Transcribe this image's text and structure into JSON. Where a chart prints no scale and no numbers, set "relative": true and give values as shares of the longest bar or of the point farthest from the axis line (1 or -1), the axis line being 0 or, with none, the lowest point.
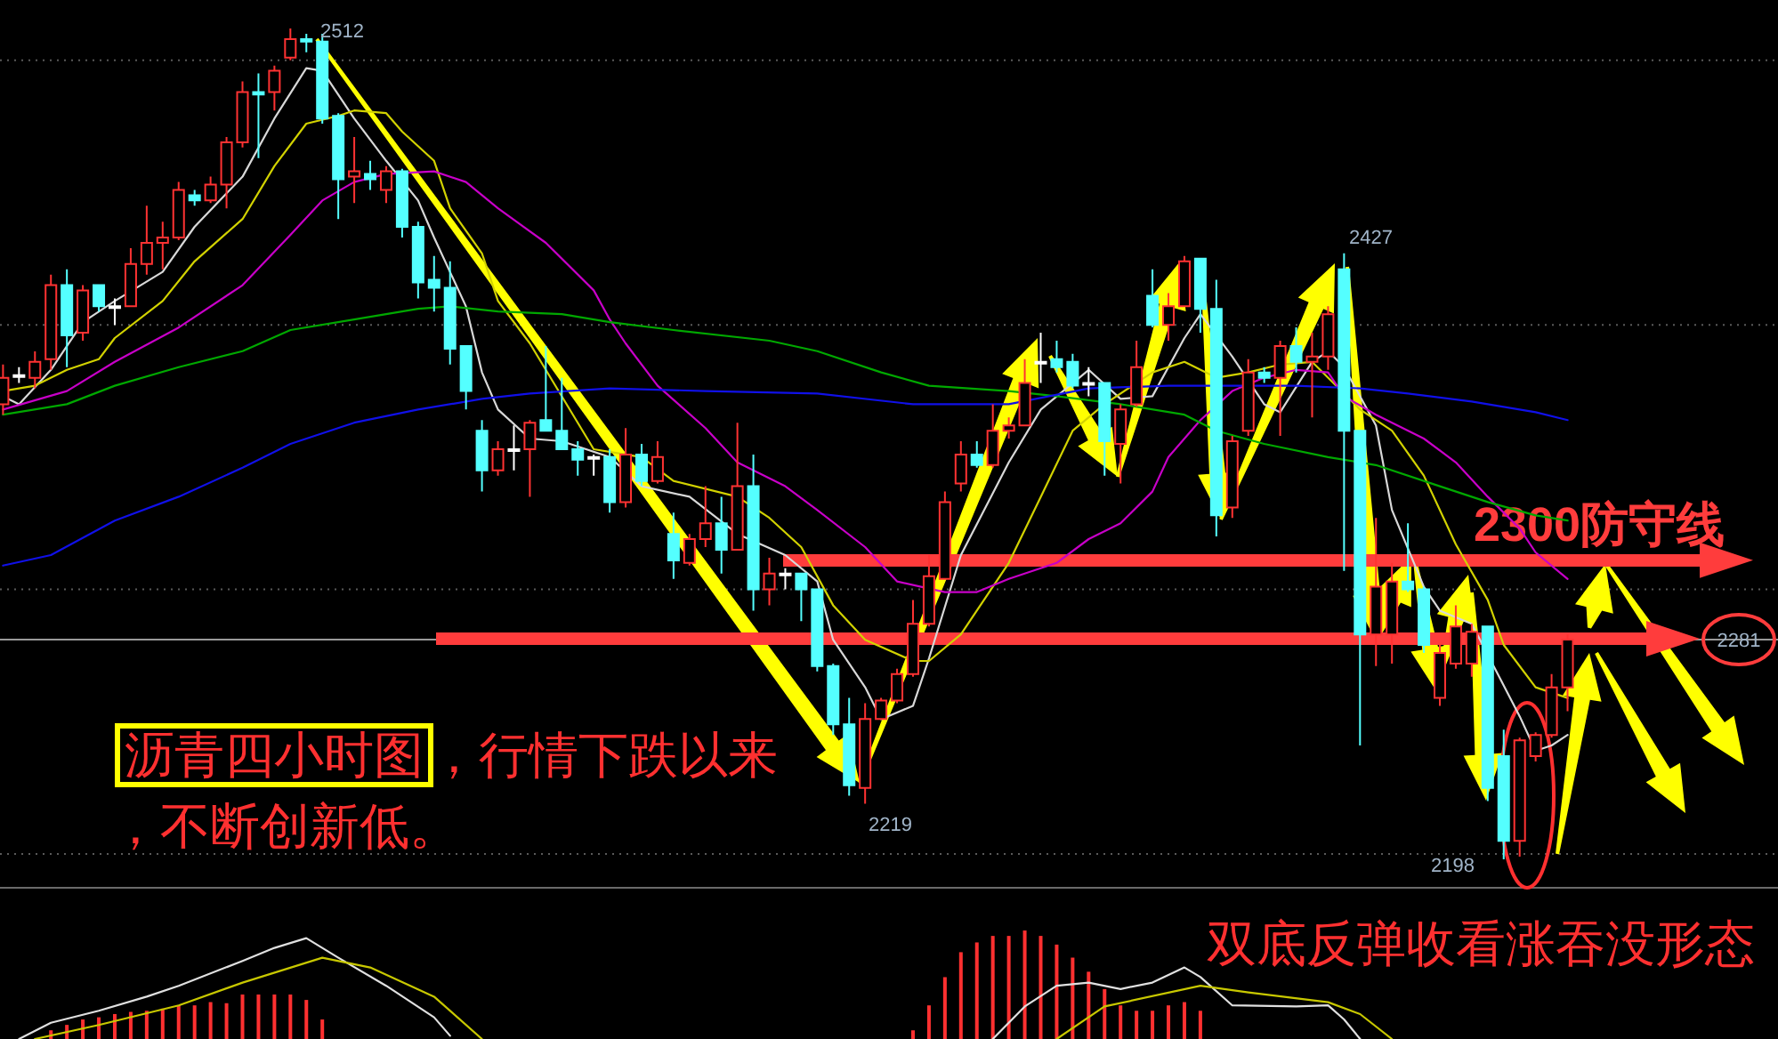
{
  "chart_data": [
    {
      "type": "candlestick",
      "categories": [
        null,
        null,
        null,
        null,
        null,
        null,
        null,
        null,
        null,
        null,
        null,
        null,
        null,
        null,
        null,
        null,
        null,
        null,
        null,
        null,
        null,
        null,
        null,
        null,
        null,
        null,
        null,
        null,
        null,
        null,
        null,
        null,
        null,
        null,
        null,
        null,
        null,
        null,
        null,
        null,
        null,
        null,
        null,
        null,
        null,
        null,
        null,
        null,
        null,
        null,
        null,
        null,
        null,
        null,
        null,
        null,
        null,
        null,
        null,
        null,
        null,
        null,
        null,
        null,
        null,
        null,
        null,
        null,
        null,
        null,
        null,
        null,
        null,
        null,
        null,
        null,
        null,
        null,
        null,
        null,
        null,
        null,
        null,
        null,
        null,
        null,
        null,
        null,
        null,
        null,
        null,
        null,
        null,
        null,
        null,
        null,
        null,
        null,
        null
      ],
      "ohlc": [
        [
          2370,
          2385,
          2366,
          2380
        ],
        [
          2381,
          2384,
          2378,
          2381
        ],
        [
          2380,
          2390,
          2376,
          2386
        ],
        [
          2387,
          2419,
          2383,
          2415
        ],
        [
          2415,
          2421,
          2384,
          2396
        ],
        [
          2397,
          2415,
          2394,
          2413
        ],
        [
          2415,
          2415,
          2405,
          2407
        ],
        [
          2407,
          2410,
          2400,
          2407
        ],
        [
          2407,
          2429,
          2407,
          2423
        ],
        [
          2423,
          2445,
          2419,
          2431
        ],
        [
          2431,
          2439,
          2421,
          2433
        ],
        [
          2433,
          2454,
          2432,
          2451
        ],
        [
          2449,
          2451,
          2445,
          2447
        ],
        [
          2447,
          2456,
          2446,
          2453
        ],
        [
          2453,
          2471,
          2444,
          2469
        ],
        [
          2469,
          2492,
          2467,
          2488
        ],
        [
          2488,
          2495,
          2463,
          2487
        ],
        [
          2488,
          2498,
          2481,
          2496
        ],
        [
          2501,
          2512,
          2500,
          2508
        ],
        [
          2508,
          2510,
          2503,
          2507
        ],
        [
          2507,
          2510,
          2476,
          2478
        ],
        [
          2479,
          2480,
          2440,
          2455
        ],
        [
          2456,
          2471,
          2446,
          2458
        ],
        [
          2457,
          2462,
          2451,
          2455
        ],
        [
          2451,
          2460,
          2446,
          2458
        ],
        [
          2458,
          2459,
          2433,
          2437
        ],
        [
          2437,
          2439,
          2410,
          2416
        ],
        [
          2417,
          2426,
          2405,
          2414
        ],
        [
          2414,
          2424,
          2385,
          2391
        ],
        [
          2392,
          2392,
          2368,
          2375
        ],
        [
          2360,
          2364,
          2337,
          2345
        ],
        [
          2345,
          2356,
          2343,
          2353
        ],
        [
          2353,
          2362,
          2345,
          2353
        ],
        [
          2353,
          2364,
          2335,
          2363
        ],
        [
          2364,
          2392,
          2360,
          2360
        ],
        [
          2360,
          2380,
          2353,
          2353
        ],
        [
          2353,
          2356,
          2343,
          2349
        ],
        [
          2350,
          2351,
          2343,
          2350
        ],
        [
          2350,
          2353,
          2329,
          2333
        ],
        [
          2333,
          2361,
          2331,
          2351
        ],
        [
          2351,
          2355,
          2339,
          2341
        ],
        [
          2341,
          2356,
          2340,
          2350
        ],
        [
          2321,
          2329,
          2304,
          2311
        ],
        [
          2310,
          2321,
          2309,
          2319
        ],
        [
          2319,
          2339,
          2316,
          2325
        ],
        [
          2325,
          2335,
          2306,
          2315
        ],
        [
          2315,
          2363,
          2315,
          2339
        ],
        [
          2339,
          2351,
          2292,
          2300
        ],
        [
          2300,
          2312,
          2294,
          2306
        ],
        [
          2306,
          2308,
          2300,
          2306
        ],
        [
          2306,
          2306,
          2288,
          2300
        ],
        [
          2300,
          2300,
          2269,
          2271
        ],
        [
          2271,
          2272,
          2245,
          2249
        ],
        [
          2249,
          2259,
          2222,
          2226
        ],
        [
          2225,
          2257,
          2219,
          2251
        ],
        [
          2251,
          2259,
          2251,
          2258
        ],
        [
          2258,
          2270,
          2257,
          2268
        ],
        [
          2268,
          2296,
          2267,
          2287
        ],
        [
          2287,
          2313,
          2286,
          2305
        ],
        [
          2304,
          2337,
          2304,
          2333
        ],
        [
          2340,
          2356,
          2337,
          2351
        ],
        [
          2351,
          2356,
          2346,
          2347
        ],
        [
          2347,
          2370,
          2346,
          2360
        ],
        [
          2360,
          2365,
          2357,
          2362
        ],
        [
          2362,
          2387,
          2362,
          2378
        ],
        [
          2386,
          2397,
          2378,
          2386
        ],
        [
          2387,
          2394,
          2382,
          2384
        ],
        [
          2386,
          2389,
          2376,
          2377
        ],
        [
          2378,
          2384,
          2373,
          2378
        ],
        [
          2378,
          2378,
          2343,
          2356
        ],
        [
          2355,
          2370,
          2340,
          2368
        ],
        [
          2370,
          2394,
          2369,
          2384
        ],
        [
          2411,
          2421,
          2399,
          2400
        ],
        [
          2400,
          2412,
          2394,
          2407
        ],
        [
          2407,
          2426,
          2407,
          2424
        ],
        [
          2425,
          2425,
          2397,
          2406
        ],
        [
          2406,
          2417,
          2320,
          2328
        ],
        [
          2331,
          2358,
          2327,
          2356
        ],
        [
          2360,
          2387,
          2358,
          2382
        ],
        [
          2382,
          2384,
          2378,
          2380
        ],
        [
          2380,
          2394,
          2358,
          2392
        ],
        [
          2392,
          2399,
          2382,
          2386
        ],
        [
          2386,
          2397,
          2365,
          2388
        ],
        [
          2388,
          2407,
          2383,
          2404
        ],
        [
          2421,
          2427,
          2307,
          2360
        ],
        [
          2360,
          2360,
          2241,
          2283
        ],
        [
          2283,
          2327,
          2271,
          2301
        ],
        [
          2283,
          2310,
          2272,
          2303
        ],
        [
          2303,
          2325,
          2299,
          2300
        ],
        [
          2300,
          2301,
          2276,
          2279
        ],
        [
          2259,
          2279,
          2256,
          2276
        ],
        [
          2272,
          2294,
          2270,
          2286
        ],
        [
          2272,
          2287,
          2267,
          2284
        ],
        [
          2286,
          2286,
          2220,
          2225
        ],
        [
          2237,
          2247,
          2198,
          2205
        ],
        [
          2205,
          2244,
          2199,
          2243
        ],
        [
          2237,
          2246,
          2235,
          2245
        ],
        [
          2245,
          2268,
          2244,
          2263
        ],
        [
          2263,
          2283,
          2254,
          2281
        ]
      ],
      "colors": [
        "#ff3232",
        "#ffffff",
        "#ff3232",
        "#ff3232",
        "#54ffff",
        "#ff3232",
        "#54ffff",
        "#ffffff",
        "#ff3232",
        "#ff3232",
        "#ff3232",
        "#ff3232",
        "#54ffff",
        "#ff3232",
        "#ff3232",
        "#ff3232",
        "#54ffff",
        "#ff3232",
        "#ff3232",
        "#54ffff",
        "#54ffff",
        "#54ffff",
        "#ff3232",
        "#54ffff",
        "#ff3232",
        "#54ffff",
        "#54ffff",
        "#54ffff",
        "#54ffff",
        "#54ffff",
        "#54ffff",
        "#ff3232",
        "#ffffff",
        "#ff3232",
        "#54ffff",
        "#54ffff",
        "#54ffff",
        "#ffffff",
        "#54ffff",
        "#ff3232",
        "#54ffff",
        "#ff3232",
        "#54ffff",
        "#ff3232",
        "#ff3232",
        "#54ffff",
        "#ff3232",
        "#54ffff",
        "#ff3232",
        "#ffffff",
        "#54ffff",
        "#54ffff",
        "#54ffff",
        "#54ffff",
        "#ff3232",
        "#ff3232",
        "#ff3232",
        "#ff3232",
        "#ff3232",
        "#ff3232",
        "#ff3232",
        "#54ffff",
        "#ff3232",
        "#ff3232",
        "#ff3232",
        "#ffffff",
        "#54ffff",
        "#54ffff",
        "#ffffff",
        "#54ffff",
        "#ff3232",
        "#ff3232",
        "#54ffff",
        "#ff3232",
        "#ff3232",
        "#54ffff",
        "#54ffff",
        "#ff3232",
        "#ff3232",
        "#54ffff",
        "#ff3232",
        "#54ffff",
        "#ff3232",
        "#ff3232",
        "#54ffff",
        "#54ffff",
        "#ff3232",
        "#ff3232",
        "#54ffff",
        "#54ffff",
        "#ff3232",
        "#ff3232",
        "#ff3232",
        "#54ffff",
        "#54ffff",
        "#ff3232",
        "#ff3232",
        "#ff3232",
        "#ff3232"
      ],
      "yticks": [
        {
          "value": 2200,
          "label": null
        },
        {
          "value": 2300,
          "label": null
        },
        {
          "value": 2400,
          "label": null
        },
        {
          "value": 2500,
          "label": null
        }
      ],
      "grid": "y",
      "series": [
        {
          "type": "line",
          "color": "#d8d8d8",
          "values": [
            2373,
            2370,
            null,
            2383,
            null,
            2401,
            null,
            2409,
            null,
            null,
            2420,
            null,
            2437,
            null,
            null,
            2456,
            null,
            2478,
            null,
            2497,
            2496,
            null,
            2478,
            null,
            2462,
            null,
            2447,
            2433,
            null,
            2407,
            2382,
            2368,
            null,
            2357,
            null,
            2356,
            null,
            null,
            2350,
            null,
            2339,
            null,
            null,
            2335,
            null,
            null,
            2321,
            null,
            null,
            2313,
            null,
            2303,
            2281,
            null,
            2263,
            2251,
            null,
            2256,
            2274,
            null,
            2313,
            null,
            null,
            2348,
            null,
            2368,
            null,
            null,
            2383,
            null,
            2372,
            null,
            2373,
            null,
            2395,
            2404,
            null,
            2388,
            null,
            2370,
            2367,
            null,
            2386,
            2390,
            2384,
            null,
            2362,
            2330,
            null,
            2301,
            2292,
            null,
            2287,
            null,
            null,
            2252,
            2239,
            2241,
            2245
          ]
        },
        {
          "type": "line",
          "color": "#d2d200",
          "values": [
            2375,
            null,
            2377,
            null,
            2383,
            null,
            2387,
            2395,
            null,
            null,
            2409,
            null,
            2424,
            null,
            null,
            2440,
            null,
            2460,
            null,
            2476,
            null,
            2479,
            2481,
            null,
            2480,
            2473,
            null,
            2462,
            2444,
            null,
            2427,
            2409,
            null,
            2393,
            null,
            null,
            null,
            2353,
            null,
            null,
            2350,
            null,
            2341,
            null,
            null,
            null,
            2335,
            null,
            2327,
            null,
            2316,
            null,
            2294,
            null,
            2281,
            null,
            null,
            2273,
            2273,
            null,
            2283,
            null,
            null,
            2310,
            null,
            2335,
            null,
            2360,
            null,
            2370,
            null,
            null,
            2382,
            null,
            2386,
            null,
            2380,
            null,
            2382,
            null,
            2385,
            null,
            2386,
            null,
            null,
            2368,
            null,
            2360,
            null,
            2343,
            null,
            2317,
            null,
            2296,
            2279,
            null,
            2263,
            null,
            2259
          ]
        },
        {
          "type": "line",
          "color": "#c800c8",
          "values": [
            2368,
            null,
            null,
            null,
            2375,
            null,
            null,
            2386,
            null,
            null,
            null,
            2399,
            null,
            null,
            null,
            2415,
            null,
            null,
            2434,
            null,
            2447,
            null,
            2454,
            null,
            2457,
            null,
            null,
            2458,
            null,
            2454,
            null,
            2444,
            null,
            null,
            2431,
            null,
            null,
            2413,
            2402,
            2393,
            null,
            2377,
            null,
            null,
            2361,
            null,
            2348,
            null,
            null,
            2339,
            null,
            2330,
            null,
            null,
            2316,
            null,
            2303,
            null,
            null,
            2299,
            null,
            2299,
            null,
            2304,
            null,
            null,
            2310,
            null,
            2319,
            null,
            2325,
            null,
            2337,
            2350,
            null,
            2364,
            null,
            2375,
            null,
            2380,
            null,
            2383,
            null,
            2382,
            2373,
            null,
            2366,
            null,
            null,
            2357,
            null,
            2348,
            null,
            2335,
            null,
            2323,
            2314,
            null,
            2304
          ]
        },
        {
          "type": "line",
          "color": "#00a800",
          "values": [
            2366,
            null,
            null,
            null,
            2370,
            null,
            null,
            2377,
            null,
            null,
            null,
            2384,
            null,
            null,
            null,
            2390,
            null,
            null,
            2398,
            null,
            null,
            null,
            2402,
            null,
            null,
            null,
            2406,
            null,
            2407,
            null,
            null,
            2405,
            null,
            null,
            null,
            2404,
            null,
            null,
            2401,
            null,
            null,
            null,
            2398,
            null,
            null,
            null,
            null,
            null,
            2394,
            null,
            null,
            2390,
            null,
            null,
            null,
            2382,
            null,
            null,
            2377,
            null,
            null,
            null,
            null,
            2375,
            null,
            null,
            2373,
            null,
            null,
            null,
            2370,
            null,
            null,
            null,
            2366,
            null,
            2360,
            null,
            null,
            2355,
            null,
            null,
            null,
            2350,
            null,
            null,
            2347,
            null,
            null,
            null,
            2339,
            null,
            null,
            2333,
            null,
            null,
            2328,
            null,
            2326
          ]
        },
        {
          "type": "line",
          "color": "#1010e8",
          "values": [
            2309,
            null,
            null,
            2313,
            null,
            null,
            null,
            2326,
            null,
            null,
            null,
            2335,
            null,
            null,
            null,
            2346,
            null,
            null,
            2355,
            null,
            null,
            null,
            2363,
            null,
            null,
            null,
            2368,
            null,
            null,
            null,
            2372,
            null,
            null,
            2374,
            null,
            null,
            null,
            null,
            2376,
            null,
            null,
            null,
            null,
            null,
            2375,
            null,
            null,
            null,
            null,
            null,
            null,
            2374,
            null,
            null,
            null,
            null,
            null,
            2370,
            null,
            null,
            null,
            null,
            null,
            2370,
            null,
            null,
            null,
            null,
            2376,
            null,
            null,
            null,
            null,
            2377,
            null,
            null,
            null,
            2377,
            null,
            null,
            null,
            2377,
            null,
            null,
            null,
            2376,
            null,
            null,
            2374,
            null,
            null,
            null,
            2371,
            null,
            null,
            null,
            2367,
            null,
            2364
          ]
        }
      ],
      "ref_lines": [
        {
          "axis": "y",
          "value": 2311,
          "label": "2300防守线",
          "color": "#ff3c3c"
        },
        {
          "axis": "y",
          "value": 2281,
          "label": "2281",
          "color": "#9a9a9a"
        }
      ],
      "annotations": [
        "沥青四小时图",
        "，行情下跌以来",
        "，不断创新低。",
        "双底反弹收看涨吞没形态",
        "2512",
        "2427",
        "2219",
        "2198"
      ]
    },
    {
      "type": "bar",
      "relative": true,
      "categories": [
        null,
        null,
        null,
        null,
        null,
        null,
        null,
        null,
        null,
        null,
        null,
        null,
        null,
        null,
        null,
        null,
        null,
        null,
        null,
        null,
        null,
        null,
        null,
        null,
        null,
        null,
        null,
        null,
        null,
        null,
        null,
        null,
        null,
        null,
        null,
        null,
        null,
        null,
        null,
        null,
        null,
        null,
        null,
        null,
        null,
        null,
        null,
        null,
        null,
        null,
        null,
        null,
        null,
        null,
        null,
        null,
        null,
        null,
        null,
        null,
        null,
        null,
        null,
        null,
        null,
        null,
        null,
        null,
        null,
        null,
        null,
        null,
        null,
        null,
        null,
        null,
        null,
        null,
        null,
        null,
        null,
        null,
        null,
        null,
        null,
        null,
        null,
        null,
        null,
        null,
        null,
        null,
        null,
        null,
        null,
        null,
        null,
        null,
        null
      ],
      "series": [
        {
          "color": "#ff3030",
          "values": [
            null,
            null,
            null,
            0.08,
            0.13,
            0.18,
            0.2,
            0.23,
            0.25,
            0.26,
            0.28,
            0.31,
            0.31,
            0.34,
            0.33,
            0.41,
            0.41,
            0.41,
            0.41,
            0.36,
            0.18,
            null,
            null,
            null,
            null,
            null,
            null,
            null,
            null,
            null,
            null,
            null,
            null,
            null,
            null,
            null,
            null,
            null,
            null,
            null,
            null,
            null,
            null,
            null,
            null,
            null,
            null,
            null,
            null,
            null,
            null,
            null,
            null,
            null,
            null,
            null,
            null,
            0.08,
            0.31,
            0.57,
            0.8,
            0.89,
            0.95,
            0.95,
            1,
            0.95,
            0.87,
            0.75,
            0.62,
            0.46,
            0.31,
            0.26,
            0.26,
            0.31,
            0.34,
            0.26,
            null,
            null,
            null,
            null,
            null,
            null,
            null,
            null,
            null,
            null,
            null,
            null,
            null,
            null,
            null,
            null,
            null,
            null,
            null,
            null,
            null,
            null,
            null
          ]
        },
        {
          "type": "line",
          "color": "#e0e0e0",
          "values": [
            null,
            0,
            null,
            0.15,
            null,
            null,
            0.26,
            null,
            null,
            0.39,
            null,
            0.49,
            null,
            null,
            null,
            0.72,
            null,
            0.84,
            null,
            0.93,
            null,
            0.75,
            null,
            null,
            0.49,
            null,
            null,
            0.2,
            0.03,
            null,
            null,
            null,
            null,
            null,
            null,
            null,
            null,
            null,
            null,
            null,
            null,
            null,
            null,
            null,
            null,
            null,
            null,
            null,
            null,
            null,
            null,
            null,
            null,
            null,
            null,
            null,
            null,
            null,
            null,
            null,
            null,
            null,
            null,
            null,
            null,
            null,
            null,
            null,
            null,
            null,
            null,
            null,
            null,
            null,
            null,
            null,
            null,
            null,
            null,
            null,
            null,
            null,
            null,
            null,
            null,
            null,
            null,
            null,
            null,
            null,
            null,
            null,
            null,
            null,
            null,
            null,
            null,
            null,
            null
          ]
        },
        {
          "type": "line",
          "color": "#e0e0e0",
          "values": [
            null,
            null,
            null,
            null,
            null,
            null,
            null,
            null,
            null,
            null,
            null,
            null,
            null,
            null,
            null,
            null,
            null,
            null,
            null,
            null,
            null,
            null,
            null,
            null,
            null,
            null,
            null,
            null,
            null,
            null,
            null,
            null,
            null,
            null,
            null,
            null,
            null,
            null,
            null,
            null,
            null,
            null,
            null,
            null,
            null,
            null,
            null,
            null,
            null,
            null,
            null,
            null,
            null,
            null,
            null,
            null,
            null,
            null,
            null,
            null,
            null,
            null,
            0,
            null,
            0.3,
            null,
            0.49,
            null,
            0.52,
            null,
            0.46,
            null,
            0.52,
            null,
            0.66,
            0.57,
            null,
            0.31,
            null,
            null,
            null,
            0.3,
            null,
            0.31,
            0.18,
            0,
            null,
            null,
            null,
            null,
            null,
            null,
            null,
            null,
            null,
            null,
            null,
            null,
            null
          ]
        },
        {
          "type": "line",
          "color": "#c8c800",
          "values": [
            null,
            null,
            0,
            null,
            null,
            null,
            0.13,
            null,
            null,
            null,
            null,
            0.31,
            null,
            null,
            null,
            0.52,
            null,
            null,
            null,
            null,
            0.75,
            null,
            null,
            0.66,
            null,
            null,
            null,
            0.39,
            null,
            null,
            0,
            null,
            null,
            null,
            null,
            null,
            null,
            null,
            null,
            null,
            null,
            null,
            null,
            null,
            null,
            null,
            null,
            null,
            null,
            null,
            null,
            null,
            null,
            null,
            null,
            null,
            null,
            null,
            null,
            null,
            null,
            null,
            null,
            null,
            null,
            null,
            null,
            null,
            null,
            null,
            null,
            null,
            null,
            null,
            null,
            null,
            null,
            null,
            null,
            null,
            null,
            null,
            null,
            null,
            null,
            null,
            null,
            null,
            null,
            null,
            null,
            null,
            null,
            null,
            null,
            null,
            null,
            null,
            null
          ]
        },
        {
          "type": "line",
          "color": "#c8c800",
          "values": [
            null,
            null,
            null,
            null,
            null,
            null,
            null,
            null,
            null,
            null,
            null,
            null,
            null,
            null,
            null,
            null,
            null,
            null,
            null,
            null,
            null,
            null,
            null,
            null,
            null,
            null,
            null,
            null,
            null,
            null,
            null,
            null,
            null,
            null,
            null,
            null,
            null,
            null,
            null,
            null,
            null,
            null,
            null,
            null,
            null,
            null,
            null,
            null,
            null,
            null,
            null,
            null,
            null,
            null,
            null,
            null,
            null,
            null,
            null,
            null,
            null,
            null,
            null,
            null,
            null,
            null,
            0,
            null,
            null,
            0.3,
            null,
            null,
            null,
            null,
            null,
            0.49,
            null,
            null,
            0.43,
            null,
            null,
            null,
            null,
            0.34,
            null,
            0.23,
            null,
            0,
            null,
            null,
            null,
            null,
            null,
            null,
            null,
            null,
            null,
            null,
            null
          ]
        }
      ]
    }
  ]
}
